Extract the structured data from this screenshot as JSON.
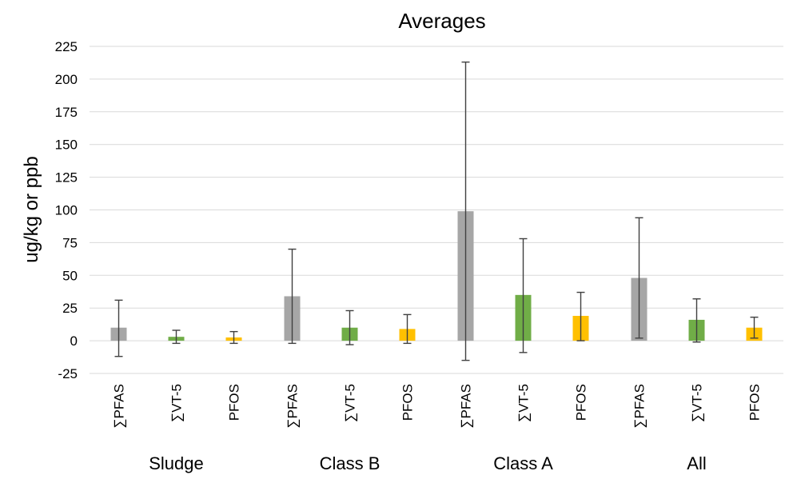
{
  "chart_data": {
    "type": "bar",
    "title": "Averages",
    "ylabel": "ug/kg or ppb",
    "xlabel": "",
    "ylim": [
      -25,
      225
    ],
    "yticks": [
      -25,
      0,
      25,
      50,
      75,
      100,
      125,
      150,
      175,
      200,
      225
    ],
    "grid": true,
    "groups": [
      {
        "name": "Sludge",
        "bars": [
          {
            "label": "∑PFAS",
            "value": 10,
            "err_low": -12,
            "err_high": 31,
            "color": "#a6a6a6"
          },
          {
            "label": "∑VT-5",
            "value": 3,
            "err_low": -2,
            "err_high": 8,
            "color": "#70ad47"
          },
          {
            "label": "PFOS",
            "value": 2.5,
            "err_low": -2,
            "err_high": 7,
            "color": "#ffc000"
          }
        ]
      },
      {
        "name": "Class B",
        "bars": [
          {
            "label": "∑PFAS",
            "value": 34,
            "err_low": -2,
            "err_high": 70,
            "color": "#a6a6a6"
          },
          {
            "label": "∑VT-5",
            "value": 10,
            "err_low": -3,
            "err_high": 23,
            "color": "#70ad47"
          },
          {
            "label": "PFOS",
            "value": 9,
            "err_low": -2,
            "err_high": 20,
            "color": "#ffc000"
          }
        ]
      },
      {
        "name": "Class A",
        "bars": [
          {
            "label": "∑PFAS",
            "value": 99,
            "err_low": -15,
            "err_high": 213,
            "color": "#a6a6a6"
          },
          {
            "label": "∑VT-5",
            "value": 35,
            "err_low": -9,
            "err_high": 78,
            "color": "#70ad47"
          },
          {
            "label": "PFOS",
            "value": 19,
            "err_low": 0,
            "err_high": 37,
            "color": "#ffc000"
          }
        ]
      },
      {
        "name": "All",
        "bars": [
          {
            "label": "∑PFAS",
            "value": 48,
            "err_low": 2,
            "err_high": 94,
            "color": "#a6a6a6"
          },
          {
            "label": "∑VT-5",
            "value": 16,
            "err_low": -1,
            "err_high": 32,
            "color": "#70ad47"
          },
          {
            "label": "PFOS",
            "value": 10,
            "err_low": 2,
            "err_high": 18,
            "color": "#ffc000"
          }
        ]
      }
    ]
  }
}
